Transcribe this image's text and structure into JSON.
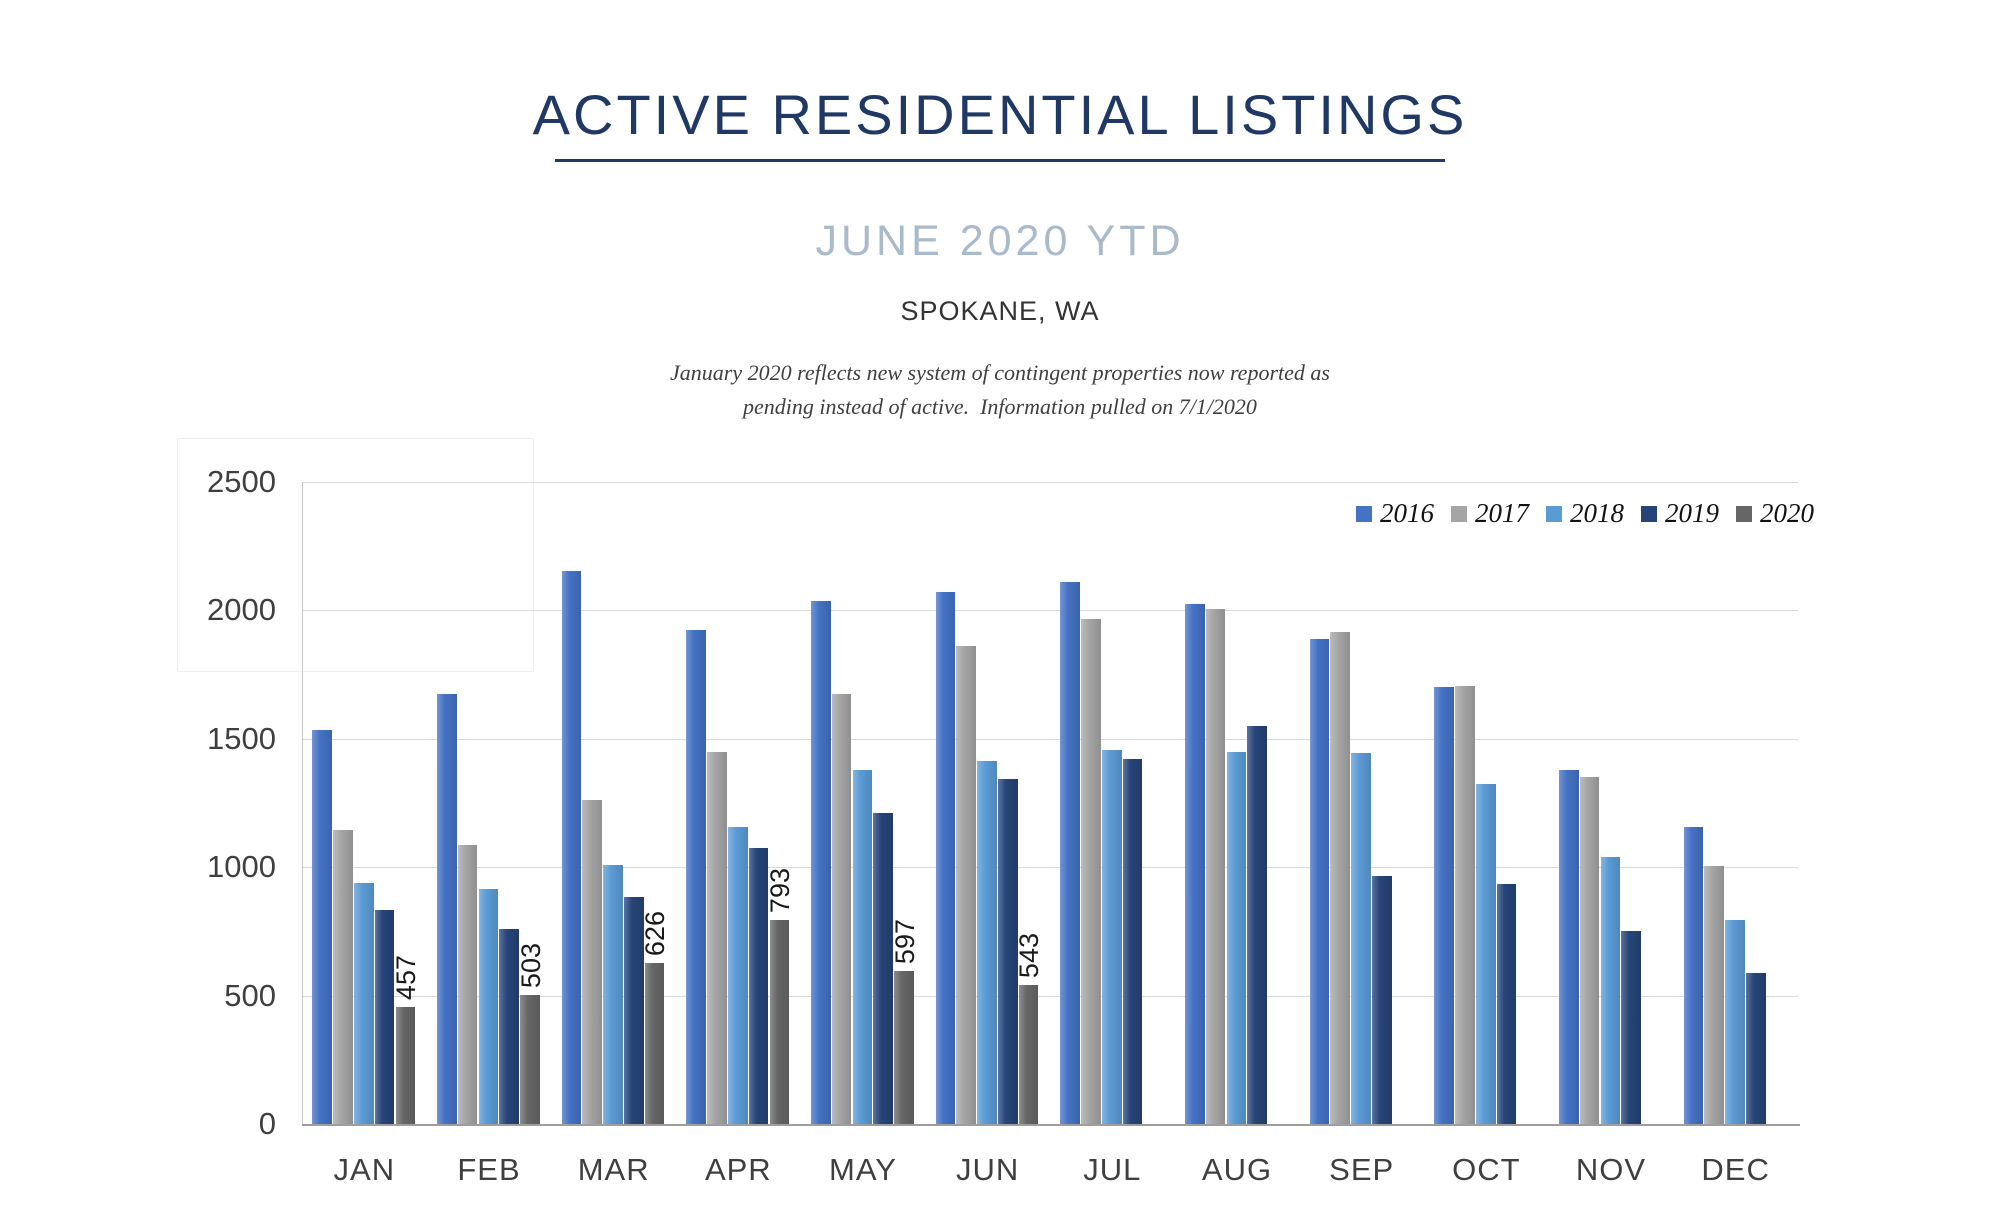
{
  "header": {
    "title": "ACTIVE RESIDENTIAL LISTINGS",
    "subtitle": "JUNE 2020 YTD",
    "location": "SPOKANE, WA",
    "note_line1": "January 2020 reflects new system of contingent properties now reported as",
    "note_line2": "pending instead of active.  Information pulled on 7/1/2020"
  },
  "colors": {
    "title_navy": "#1F3864",
    "subtitle_blue_gray": "#A9BACB",
    "gridline": "#D9D9D9",
    "x_axis_line": "#9E9E9E",
    "y_axis_line": "#C6C6C6",
    "tick_text": "#3F3F3F"
  },
  "chart_data": {
    "type": "bar",
    "title": "ACTIVE RESIDENTIAL LISTINGS",
    "subtitle": "JUNE 2020 YTD",
    "region": "SPOKANE, WA",
    "xlabel": "",
    "ylabel": "",
    "ylim": [
      0,
      2500
    ],
    "yticks": [
      0,
      500,
      1000,
      1500,
      2000,
      2500
    ],
    "grid": true,
    "legend_position": "top-right",
    "categories": [
      "JAN",
      "FEB",
      "MAR",
      "APR",
      "MAY",
      "JUN",
      "JUL",
      "AUG",
      "SEP",
      "OCT",
      "NOV",
      "DEC"
    ],
    "series": [
      {
        "name": "2016",
        "color": "#4472C4",
        "values": [
          1535,
          1675,
          2155,
          1925,
          2035,
          2070,
          2110,
          2025,
          1890,
          1700,
          1380,
          1155
        ]
      },
      {
        "name": "2017",
        "color": "#A5A5A5",
        "values": [
          1145,
          1085,
          1260,
          1450,
          1675,
          1860,
          1965,
          2005,
          1915,
          1705,
          1350,
          1005
        ]
      },
      {
        "name": "2018",
        "color": "#5B9BD5",
        "values": [
          940,
          915,
          1010,
          1155,
          1380,
          1415,
          1455,
          1450,
          1445,
          1325,
          1040,
          795
        ]
      },
      {
        "name": "2019",
        "color": "#264478",
        "values": [
          835,
          760,
          885,
          1075,
          1210,
          1345,
          1420,
          1550,
          965,
          935,
          750,
          590
        ]
      },
      {
        "name": "2020",
        "color": "#666666",
        "values": [
          457,
          503,
          626,
          793,
          597,
          543,
          null,
          null,
          null,
          null,
          null,
          null
        ]
      }
    ],
    "data_labels": {
      "series": "2020",
      "values": [
        457,
        503,
        626,
        793,
        597,
        543
      ]
    }
  }
}
